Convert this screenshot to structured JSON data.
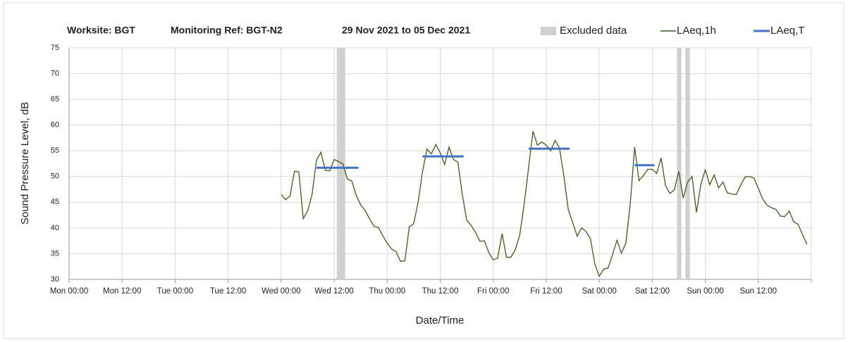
{
  "chart_data": {
    "type": "line",
    "title_parts": [
      "Worksite: BGT",
      "Monitoring Ref: BGT-N2",
      "29 Nov 2021 to 05 Dec 2021"
    ],
    "x_label": "Date/Time",
    "y_label": "Sound Pressure Level, dB",
    "xlim": [
      0,
      168
    ],
    "xticks": [
      {
        "value": 0,
        "label": "Mon 00:00"
      },
      {
        "value": 12,
        "label": "Mon 12:00"
      },
      {
        "value": 24,
        "label": "Tue 00:00"
      },
      {
        "value": 36,
        "label": "Tue 12:00"
      },
      {
        "value": 48,
        "label": "Wed 00:00"
      },
      {
        "value": 60,
        "label": "Wed 12:00"
      },
      {
        "value": 72,
        "label": "Thu 00:00"
      },
      {
        "value": 84,
        "label": "Thu 12:00"
      },
      {
        "value": 96,
        "label": "Fri 00:00"
      },
      {
        "value": 108,
        "label": "Fri 12:00"
      },
      {
        "value": 120,
        "label": "Sat 00:00"
      },
      {
        "value": 132,
        "label": "Sat 12:00"
      },
      {
        "value": 144,
        "label": "Sun 00:00"
      },
      {
        "value": 156,
        "label": "Sun 12:00"
      },
      {
        "value": 168,
        "label": ""
      }
    ],
    "ylim": [
      30,
      75
    ],
    "yticks": [
      30,
      35,
      40,
      45,
      50,
      55,
      60,
      65,
      70,
      75
    ],
    "grid": true,
    "excluded": {
      "name": "Excluded data",
      "color": "#d0d0d0",
      "ranges": [
        [
          60.6,
          62.5
        ],
        [
          137.6,
          138.6
        ],
        [
          139.5,
          140.5
        ]
      ]
    },
    "x": [
      48,
      49,
      50,
      51,
      52,
      53,
      54,
      55,
      56,
      57,
      58,
      59,
      60,
      61,
      62,
      63,
      64,
      65,
      66,
      67,
      68,
      69,
      70,
      71,
      72,
      73,
      74,
      75,
      76,
      77,
      78,
      79,
      80,
      81,
      82,
      83,
      84,
      85,
      86,
      87,
      88,
      89,
      90,
      91,
      92,
      93,
      94,
      95,
      96,
      97,
      98,
      99,
      100,
      101,
      102,
      103,
      104,
      105,
      106,
      107,
      108,
      109,
      110,
      111,
      112,
      113,
      114,
      115,
      116,
      117,
      118,
      119,
      120,
      121,
      122,
      123,
      124,
      125,
      126,
      127,
      128,
      129,
      130,
      131,
      132,
      133,
      134,
      135,
      136,
      137,
      138,
      139,
      140,
      141,
      142,
      143,
      144,
      145,
      146,
      147,
      148,
      149,
      150,
      151,
      152,
      153,
      154,
      155,
      156,
      157,
      158,
      159,
      160,
      161,
      162,
      163,
      164,
      165,
      166,
      167
    ],
    "series": [
      {
        "name": "LAeq,1h",
        "color": "#3b5e1f",
        "values": [
          46.5,
          45.5,
          46.2,
          51,
          50.9,
          41.8,
          43.3,
          46.5,
          53.2,
          54.7,
          51.2,
          51.1,
          53.3,
          52.9,
          52.4,
          49.5,
          49.1,
          46.3,
          44.5,
          43.4,
          41.8,
          40.3,
          40.1,
          38.5,
          37,
          35.9,
          35.4,
          33.5,
          33.6,
          40.2,
          40.8,
          45,
          51,
          55.3,
          54.4,
          56.2,
          54.6,
          52.3,
          55.7,
          53.3,
          52.8,
          46.5,
          41.5,
          40.5,
          39.1,
          37.4,
          37.5,
          35.2,
          33.8,
          34.1,
          38.9,
          34.3,
          34.3,
          35.8,
          38.6,
          44.6,
          51.7,
          58.8,
          56.1,
          56.7,
          56.1,
          55,
          57,
          55.5,
          50,
          43.5,
          41,
          38.4,
          40,
          39.3,
          37.9,
          33,
          30.6,
          32,
          32.2,
          34.8,
          37.6,
          35.1,
          37,
          44.5,
          55.7,
          49.2,
          50.2,
          51.4,
          51.4,
          50.6,
          53.6,
          48.2,
          46.7,
          47.4,
          51,
          45.8,
          48.9,
          50,
          43,
          48.5,
          51.3,
          48.4,
          50.3,
          47.8,
          48.9,
          46.8,
          46.6,
          46.5,
          48.3,
          49.9,
          50,
          49.7,
          47.7,
          45.6,
          44.4,
          43.9,
          43.6,
          42.3,
          42.2,
          43.3,
          41.2,
          40.7,
          38.7,
          36.8
        ]
      }
    ],
    "period_levels": {
      "name": "LAeq,T",
      "color": "#4472c4",
      "segments": [
        {
          "x": [
            56,
            65.5
          ],
          "value": 51.7
        },
        {
          "x": [
            80,
            89.3
          ],
          "value": 53.9
        },
        {
          "x": [
            104,
            113.3
          ],
          "value": 55.4
        },
        {
          "x": [
            128,
            132.5
          ],
          "value": 52.2
        }
      ]
    }
  }
}
